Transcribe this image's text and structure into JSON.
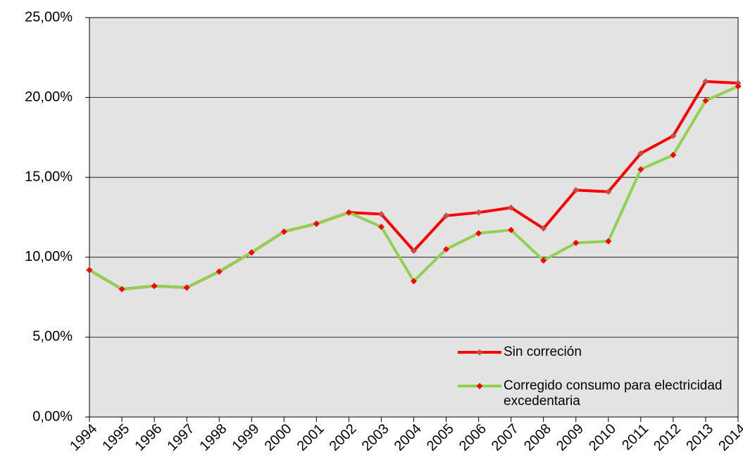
{
  "chart_data": {
    "type": "line",
    "categories": [
      "1994",
      "1995",
      "1996",
      "1997",
      "1998",
      "1999",
      "2000",
      "2001",
      "2002",
      "2003",
      "2004",
      "2005",
      "2006",
      "2007",
      "2008",
      "2009",
      "2010",
      "2011",
      "2012",
      "2013",
      "2014"
    ],
    "series": [
      {
        "name": "Sin correción",
        "color": "#ff0000",
        "marker_color": "#c0504d",
        "values": [
          9.2,
          8.0,
          8.2,
          8.1,
          9.1,
          10.3,
          11.6,
          12.1,
          12.8,
          12.7,
          10.4,
          12.6,
          12.8,
          13.1,
          11.8,
          14.2,
          14.1,
          16.5,
          17.6,
          21.0,
          20.9
        ]
      },
      {
        "name": "Corregido consumo para electricidad excedentaria",
        "color": "#92d050",
        "marker_color": "#ff0000",
        "values": [
          9.2,
          8.0,
          8.2,
          8.1,
          9.1,
          10.3,
          11.6,
          12.1,
          12.8,
          11.9,
          8.5,
          10.5,
          11.5,
          11.7,
          9.8,
          10.9,
          11.0,
          15.5,
          16.4,
          19.8,
          20.7
        ]
      }
    ],
    "ylim": [
      0,
      25
    ],
    "yticks": [
      {
        "value": 0,
        "label": "0,00%"
      },
      {
        "value": 5,
        "label": "5,00%"
      },
      {
        "value": 10,
        "label": "10,00%"
      },
      {
        "value": 15,
        "label": "15,00%"
      },
      {
        "value": 20,
        "label": "20,00%"
      },
      {
        "value": 25,
        "label": "25,00%"
      }
    ],
    "grid": true,
    "legend": "lower right"
  }
}
